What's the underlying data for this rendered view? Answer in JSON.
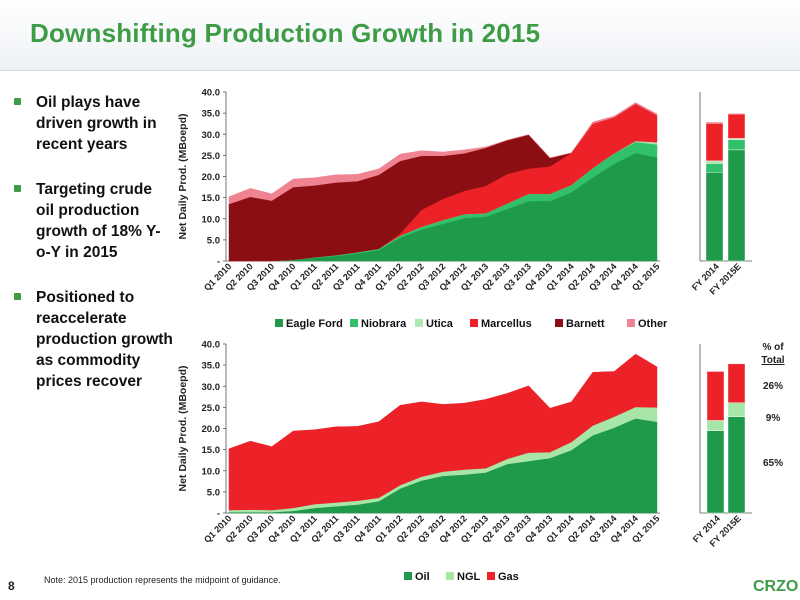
{
  "header": {
    "title": "Downshifting Production Growth in 2015"
  },
  "bullets": [
    "Oil plays have driven growth in recent years",
    "Targeting crude oil production growth of 18% Y-o-Y in 2015",
    "Positioned to reaccelerate production growth as commodity prices recover"
  ],
  "footer": {
    "page_number": "8",
    "note": "Note: 2015 production represents the midpoint of guidance.",
    "logo": "CRZO"
  },
  "pct": {
    "title": "% of Total",
    "gas": "26%",
    "ngl": "9%",
    "oil": "65%"
  },
  "chart_data": [
    {
      "type": "area",
      "stacked": true,
      "ylabel": "Net Daily Prod. (MBoepd)",
      "ylim": [
        0,
        40
      ],
      "yticks": [
        "-",
        "5.0",
        "10.0",
        "15.0",
        "20.0",
        "25.0",
        "30.0",
        "35.0",
        "40.0"
      ],
      "categories": [
        "Q1 2010",
        "Q2 2010",
        "Q3 2010",
        "Q4 2010",
        "Q1 2011",
        "Q2 2011",
        "Q3 2011",
        "Q4 2011",
        "Q1 2012",
        "Q2 2012",
        "Q3 2012",
        "Q4 2012",
        "Q1 2013",
        "Q2 2013",
        "Q3 2013",
        "Q4 2013",
        "Q1 2014",
        "Q2 2014",
        "Q3 2014",
        "Q4 2014",
        "Q1 2015"
      ],
      "legend_position": "bottom",
      "series": [
        {
          "name": "Eagle Ford",
          "color": "#1f9a4b",
          "values": [
            0,
            0,
            0,
            0.3,
            0.8,
            1.2,
            1.8,
            2.6,
            5.5,
            7.5,
            8.8,
            10.2,
            10.5,
            12.3,
            14.2,
            14.2,
            16.3,
            19.8,
            23.0,
            25.6,
            24.5
          ]
        },
        {
          "name": "Niobrara",
          "color": "#32c06a",
          "values": [
            0,
            0,
            0,
            0,
            0.1,
            0.2,
            0.3,
            0.3,
            0.5,
            0.6,
            0.9,
            0.9,
            0.8,
            1.3,
            1.7,
            1.7,
            1.7,
            2.2,
            2.5,
            2.6,
            3.1
          ]
        },
        {
          "name": "Utica",
          "color": "#aee8b0",
          "values": [
            0,
            0,
            0,
            0,
            0,
            0,
            0,
            0,
            0,
            0,
            0,
            0,
            0,
            0,
            0,
            0,
            0,
            0,
            0,
            0.2,
            0.5
          ]
        },
        {
          "name": "Marcellus",
          "color": "#ec2228",
          "values": [
            0,
            0,
            0,
            0,
            0,
            0,
            0,
            0,
            0.5,
            4.0,
            5.0,
            5.5,
            6.5,
            7.0,
            6.0,
            6.5,
            7.6,
            10.5,
            8.5,
            8.8,
            6.4
          ]
        },
        {
          "name": "Barnett",
          "color": "#8b0f12",
          "values": [
            13.5,
            15.2,
            14.3,
            17.2,
            17.0,
            17.2,
            16.8,
            17.5,
            17.2,
            12.8,
            10.2,
            8.9,
            9.0,
            8.0,
            8.0,
            2.0,
            0,
            0,
            0,
            0,
            0
          ]
        },
        {
          "name": "Other",
          "color": "#f08392",
          "values": [
            1.7,
            2.0,
            1.6,
            1.9,
            1.8,
            1.8,
            1.6,
            1.4,
            1.6,
            1.2,
            0.9,
            0.8,
            0.2,
            0,
            0,
            0,
            0,
            0.4,
            0.3,
            0.3,
            0.3
          ]
        }
      ],
      "fy_bars": {
        "categories": [
          "FY 2014",
          "FY 2015E"
        ],
        "series": [
          {
            "name": "Eagle Ford",
            "values": [
              21.0,
              26.3
            ]
          },
          {
            "name": "Niobrara",
            "values": [
              2.1,
              2.4
            ]
          },
          {
            "name": "Utica",
            "values": [
              0.6,
              0.3
            ]
          },
          {
            "name": "Marcellus",
            "values": [
              8.9,
              5.8
            ]
          },
          {
            "name": "Barnett",
            "values": [
              0,
              0
            ]
          },
          {
            "name": "Other",
            "values": [
              0.3,
              0.2
            ]
          }
        ]
      }
    },
    {
      "type": "area",
      "stacked": true,
      "ylabel": "Net Daily Prod. (MBoepd)",
      "ylim": [
        0,
        40
      ],
      "yticks": [
        "-",
        "5.0",
        "10.0",
        "15.0",
        "20.0",
        "25.0",
        "30.0",
        "35.0",
        "40.0"
      ],
      "categories": [
        "Q1 2010",
        "Q2 2010",
        "Q3 2010",
        "Q4 2010",
        "Q1 2011",
        "Q2 2011",
        "Q3 2011",
        "Q4 2011",
        "Q1 2012",
        "Q2 2012",
        "Q3 2012",
        "Q4 2012",
        "Q1 2013",
        "Q2 2013",
        "Q3 2013",
        "Q4 2013",
        "Q1 2014",
        "Q2 2014",
        "Q3 2014",
        "Q4 2014",
        "Q1 2015"
      ],
      "legend_position": "bottom",
      "series": [
        {
          "name": "Oil",
          "color": "#1f9a4b",
          "values": [
            0.2,
            0.2,
            0.2,
            0.5,
            1.2,
            1.6,
            2.0,
            2.8,
            5.8,
            7.7,
            8.8,
            9.1,
            9.6,
            11.6,
            12.3,
            13.0,
            14.9,
            18.4,
            20.2,
            22.4,
            21.6
          ]
        },
        {
          "name": "NGL",
          "color": "#a8e6a8",
          "values": [
            0.5,
            0.6,
            0.5,
            0.7,
            0.9,
            0.9,
            0.9,
            0.8,
            0.8,
            0.9,
            1.0,
            1.2,
            1.0,
            1.2,
            2.0,
            1.4,
            1.9,
            2.3,
            2.6,
            2.7,
            3.4
          ]
        },
        {
          "name": "Gas",
          "color": "#ec2228",
          "values": [
            14.5,
            16.2,
            15.0,
            18.2,
            17.6,
            17.9,
            17.6,
            18.0,
            18.9,
            17.7,
            15.9,
            15.7,
            16.3,
            15.5,
            15.8,
            10.4,
            9.5,
            12.6,
            10.7,
            12.5,
            9.6
          ]
        }
      ],
      "fy_bars": {
        "categories": [
          "FY 2014",
          "FY 2015E"
        ],
        "series": [
          {
            "name": "Oil",
            "values": [
              19.5,
              22.8
            ]
          },
          {
            "name": "NGL",
            "values": [
              2.4,
              3.3
            ]
          },
          {
            "name": "Gas",
            "values": [
              11.6,
              9.2
            ]
          }
        ]
      }
    }
  ]
}
